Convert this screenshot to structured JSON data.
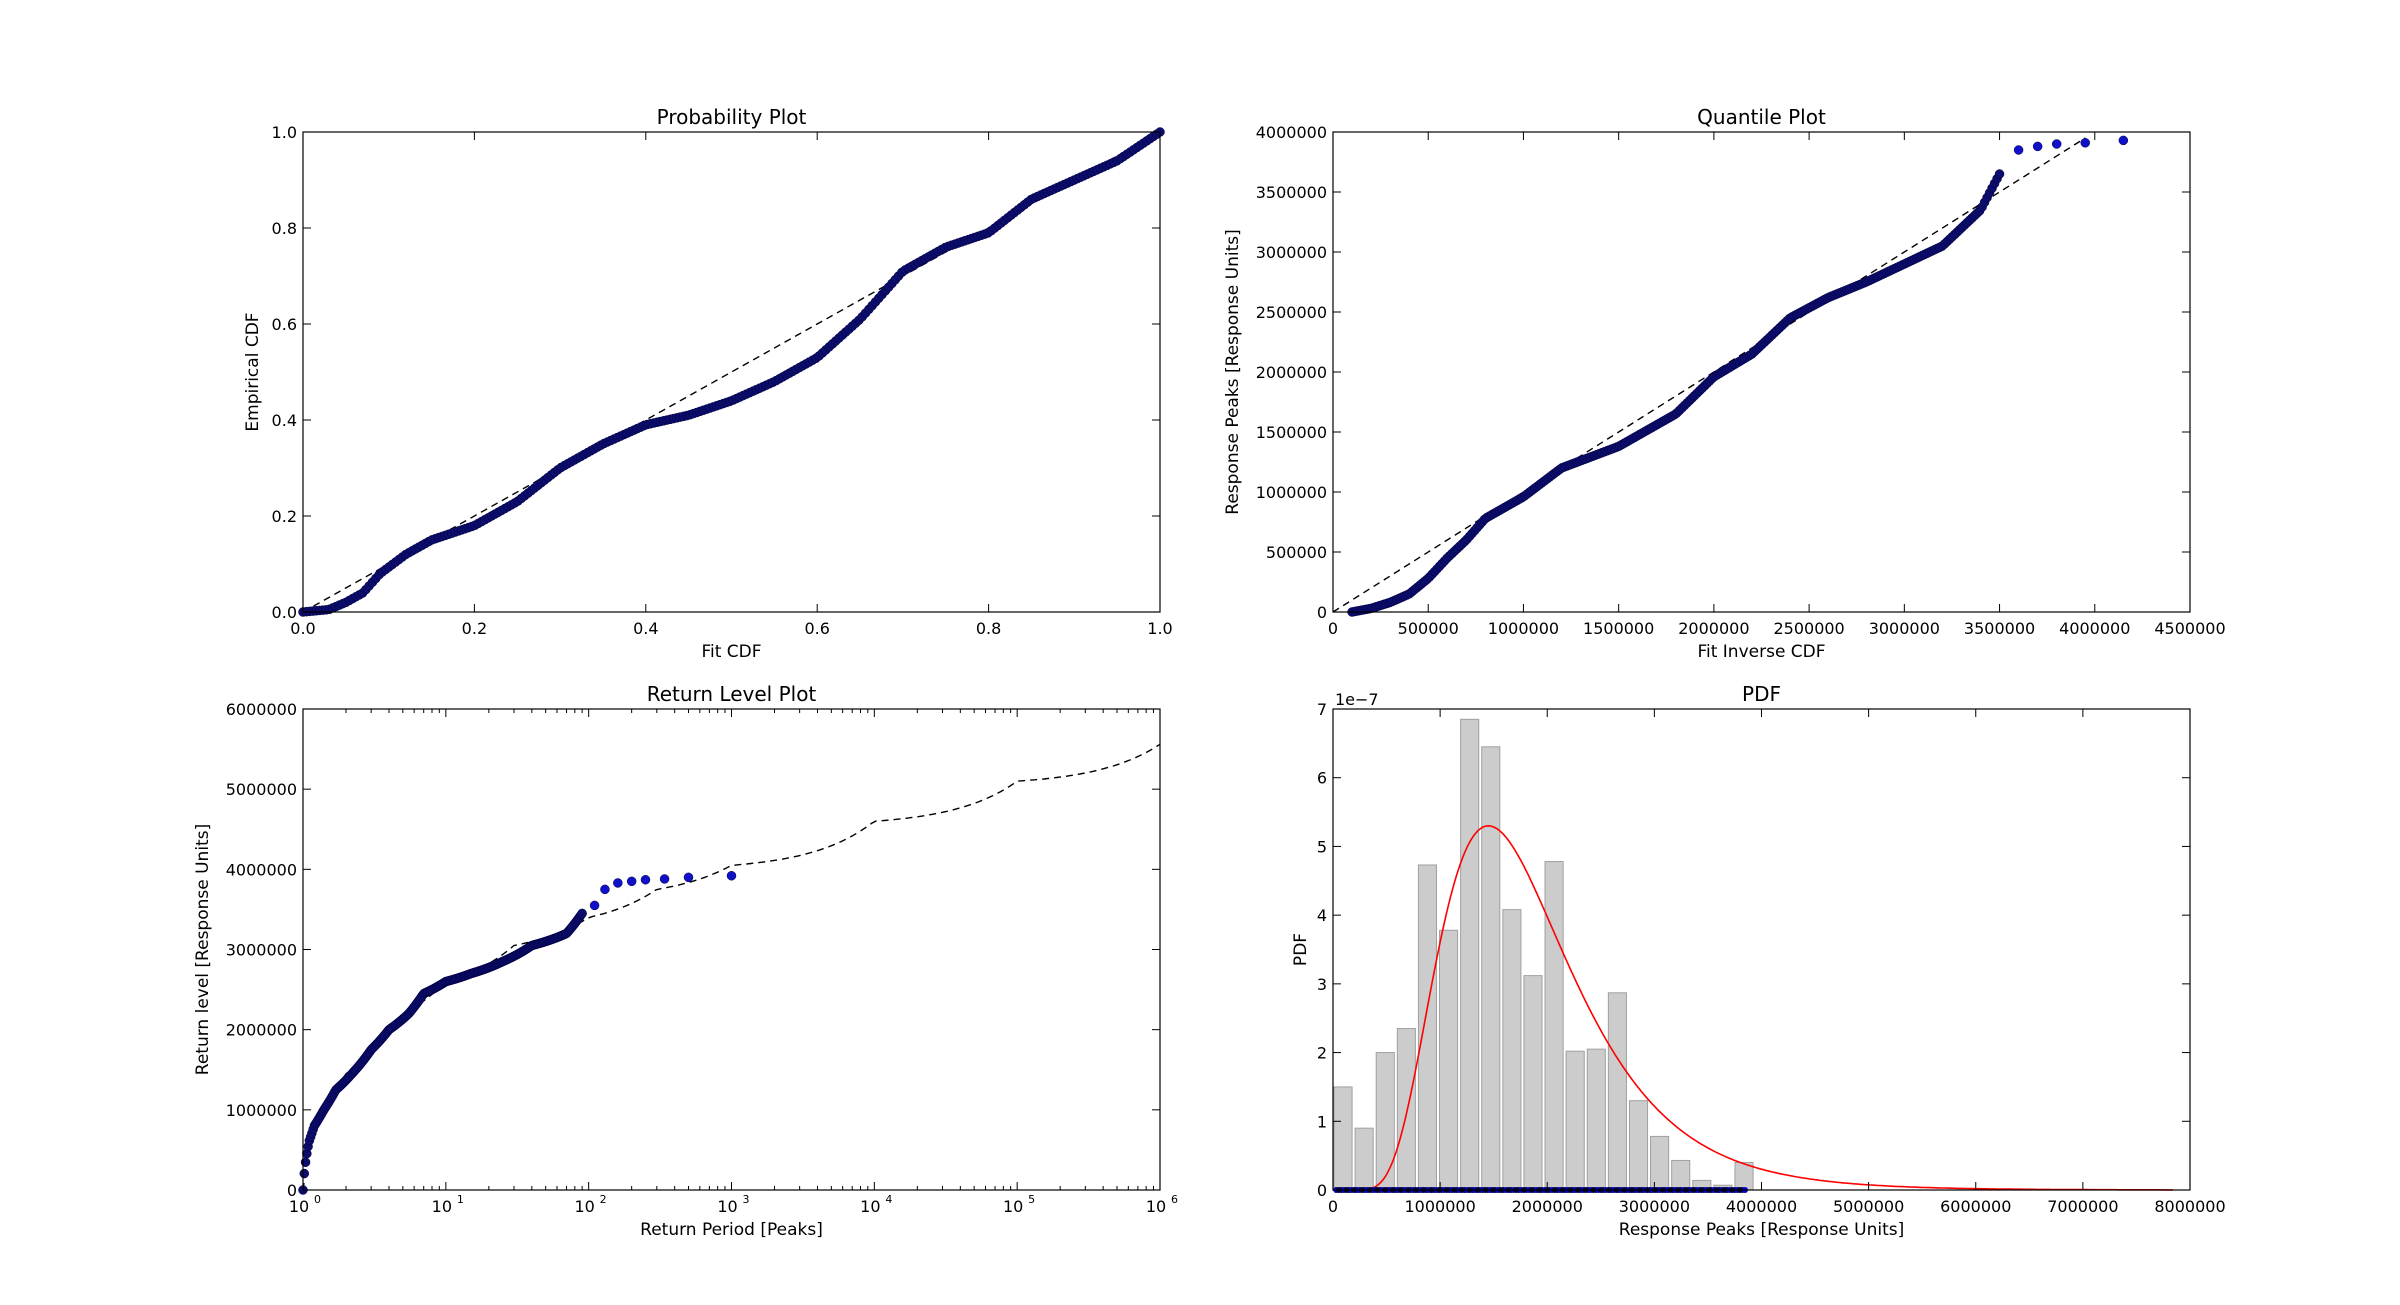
{
  "chart_data": [
    {
      "type": "scatter",
      "title": "Probability Plot",
      "xlabel": "Fit CDF",
      "ylabel": "Empirical CDF",
      "xlim": [
        0,
        1
      ],
      "ylim": [
        0,
        1
      ],
      "xticks": [
        "0.0",
        "0.2",
        "0.4",
        "0.6",
        "0.8",
        "1.0"
      ],
      "yticks": [
        "0.0",
        "0.2",
        "0.4",
        "0.6",
        "0.8",
        "1.0"
      ],
      "reference_line": {
        "x": [
          0,
          1
        ],
        "y": [
          0,
          1
        ],
        "style": "dashed"
      },
      "points": [
        [
          0.0,
          0.0
        ],
        [
          0.03,
          0.005
        ],
        [
          0.05,
          0.02
        ],
        [
          0.07,
          0.04
        ],
        [
          0.09,
          0.08
        ],
        [
          0.12,
          0.12
        ],
        [
          0.15,
          0.15
        ],
        [
          0.2,
          0.18
        ],
        [
          0.25,
          0.23
        ],
        [
          0.3,
          0.3
        ],
        [
          0.35,
          0.35
        ],
        [
          0.4,
          0.39
        ],
        [
          0.45,
          0.41
        ],
        [
          0.5,
          0.44
        ],
        [
          0.55,
          0.48
        ],
        [
          0.6,
          0.53
        ],
        [
          0.65,
          0.61
        ],
        [
          0.7,
          0.71
        ],
        [
          0.75,
          0.76
        ],
        [
          0.8,
          0.79
        ],
        [
          0.85,
          0.86
        ],
        [
          0.9,
          0.9
        ],
        [
          0.95,
          0.94
        ],
        [
          1.0,
          1.0
        ]
      ]
    },
    {
      "type": "scatter",
      "title": "Quantile Plot",
      "xlabel": "Fit Inverse CDF",
      "ylabel": "Response Peaks [Response Units]",
      "xlim": [
        0,
        4500000
      ],
      "ylim": [
        0,
        4000000
      ],
      "xticks": [
        "0",
        "500000",
        "1000000",
        "1500000",
        "2000000",
        "2500000",
        "3000000",
        "3500000",
        "4000000",
        "4500000"
      ],
      "yticks": [
        "0",
        "500000",
        "1000000",
        "1500000",
        "2000000",
        "2500000",
        "3000000",
        "3500000",
        "4000000"
      ],
      "reference_line": {
        "x": [
          0,
          3950000
        ],
        "y": [
          0,
          3950000
        ],
        "style": "dashed"
      },
      "points": [
        [
          100000,
          0
        ],
        [
          200000,
          30000
        ],
        [
          300000,
          80000
        ],
        [
          400000,
          150000
        ],
        [
          500000,
          280000
        ],
        [
          600000,
          450000
        ],
        [
          700000,
          600000
        ],
        [
          800000,
          780000
        ],
        [
          1000000,
          960000
        ],
        [
          1200000,
          1200000
        ],
        [
          1500000,
          1380000
        ],
        [
          1800000,
          1650000
        ],
        [
          2000000,
          1960000
        ],
        [
          2200000,
          2150000
        ],
        [
          2400000,
          2450000
        ],
        [
          2600000,
          2620000
        ],
        [
          2800000,
          2750000
        ],
        [
          3000000,
          2900000
        ],
        [
          3200000,
          3050000
        ],
        [
          3300000,
          3200000
        ],
        [
          3400000,
          3350000
        ],
        [
          3450000,
          3500000
        ],
        [
          3500000,
          3650000
        ],
        [
          3600000,
          3850000
        ],
        [
          3700000,
          3880000
        ],
        [
          3800000,
          3900000
        ],
        [
          3950000,
          3910000
        ],
        [
          4150000,
          3930000
        ]
      ]
    },
    {
      "type": "scatter",
      "title": "Return Level Plot",
      "xlabel": "Return Period [Peaks]",
      "ylabel": "Return level [Response Units]",
      "xscale": "log",
      "xlim": [
        1,
        1000000
      ],
      "ylim": [
        0,
        6000000
      ],
      "xticks": [
        {
          "base": "10",
          "exp": "0"
        },
        {
          "base": "10",
          "exp": "1"
        },
        {
          "base": "10",
          "exp": "2"
        },
        {
          "base": "10",
          "exp": "3"
        },
        {
          "base": "10",
          "exp": "4"
        },
        {
          "base": "10",
          "exp": "5"
        },
        {
          "base": "10",
          "exp": "6"
        }
      ],
      "yticks": [
        "0",
        "1000000",
        "2000000",
        "3000000",
        "4000000",
        "5000000",
        "6000000"
      ],
      "reference_curve": [
        [
          1,
          0
        ],
        [
          1.1,
          500000
        ],
        [
          1.3,
          900000
        ],
        [
          1.6,
          1200000
        ],
        [
          2,
          1450000
        ],
        [
          3,
          1800000
        ],
        [
          5,
          2200000
        ],
        [
          10,
          2600000
        ],
        [
          30,
          3050000
        ],
        [
          100,
          3400000
        ],
        [
          300,
          3750000
        ],
        [
          1000,
          4050000
        ],
        [
          10000,
          4600000
        ],
        [
          100000,
          5100000
        ],
        [
          1000000,
          5560000
        ]
      ],
      "points": [
        [
          1,
          0
        ],
        [
          1.02,
          200000
        ],
        [
          1.05,
          400000
        ],
        [
          1.1,
          600000
        ],
        [
          1.2,
          800000
        ],
        [
          1.4,
          1000000
        ],
        [
          1.7,
          1250000
        ],
        [
          2.2,
          1450000
        ],
        [
          3,
          1750000
        ],
        [
          4,
          2000000
        ],
        [
          5.5,
          2200000
        ],
        [
          7,
          2450000
        ],
        [
          10,
          2600000
        ],
        [
          15,
          2700000
        ],
        [
          25,
          2850000
        ],
        [
          40,
          3050000
        ],
        [
          70,
          3200000
        ],
        [
          90,
          3450000
        ],
        [
          110,
          3550000
        ],
        [
          130,
          3750000
        ],
        [
          160,
          3830000
        ],
        [
          200,
          3850000
        ],
        [
          250,
          3870000
        ],
        [
          340,
          3880000
        ],
        [
          500,
          3900000
        ],
        [
          1000,
          3920000
        ]
      ]
    },
    {
      "type": "bar",
      "title": "PDF",
      "xlabel": "Response Peaks [Response Units]",
      "ylabel": "PDF",
      "scale_label": "1e−7",
      "xlim": [
        0,
        8000000
      ],
      "ylim": [
        0,
        7
      ],
      "xticks": [
        "0",
        "1000000",
        "2000000",
        "3000000",
        "4000000",
        "5000000",
        "6000000",
        "7000000",
        "8000000"
      ],
      "yticks": [
        "0",
        "1",
        "2",
        "3",
        "4",
        "5",
        "6",
        "7"
      ],
      "bin_width": 197000,
      "bins_start": [
        0,
        197000,
        394000,
        591000,
        788000,
        985000,
        1182000,
        1379000,
        1576000,
        1773000,
        1970000,
        2167000,
        2364000,
        2561000,
        2758000,
        2955000,
        3152000,
        3349000,
        3546000,
        3743000
      ],
      "values": [
        1.5,
        0.9,
        2.0,
        2.35,
        4.73,
        3.78,
        6.85,
        6.45,
        4.08,
        3.12,
        4.78,
        2.02,
        2.05,
        2.87,
        1.3,
        0.78,
        0.43,
        0.14,
        0.07,
        0.4
      ],
      "fit_curve": {
        "type": "pdf",
        "peak_x": 1450000,
        "peak_y": 5.3,
        "color": "#ff0000"
      },
      "rug_color": "#0000cc"
    }
  ],
  "colors": {
    "points": "#1010c8",
    "point_edge": "#000044",
    "fit_curve": "#ff0000",
    "bars": "#cccccc",
    "bar_edge": "#a0a0a0"
  }
}
